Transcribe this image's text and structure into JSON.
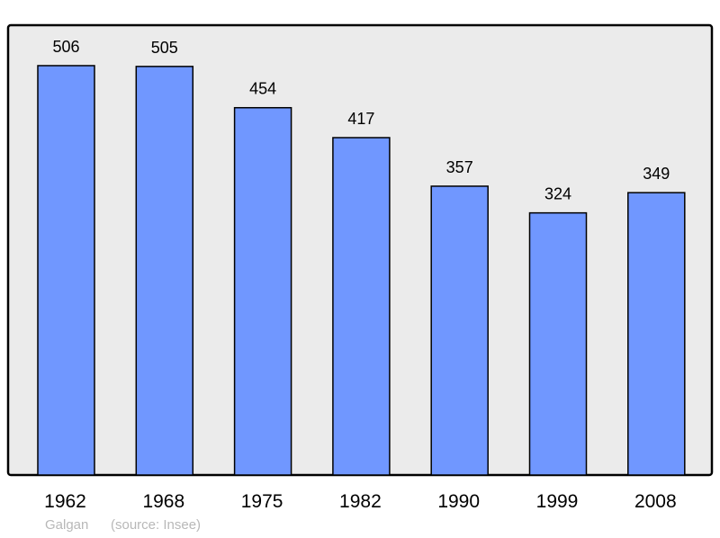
{
  "chart_data": {
    "type": "bar",
    "title": "",
    "xlabel": "",
    "ylabel": "",
    "categories": [
      "1962",
      "1968",
      "1975",
      "1982",
      "1990",
      "1999",
      "2008"
    ],
    "values": [
      506,
      505,
      454,
      417,
      357,
      324,
      349
    ],
    "ylim": [
      0,
      556
    ],
    "grid": false,
    "data_labels": true,
    "colors": {
      "bar": "#7097ff",
      "plot_background": "#ebebeb",
      "outline": "#000000"
    }
  },
  "footer": {
    "author": "Galgan",
    "source": "(source: Insee)"
  }
}
